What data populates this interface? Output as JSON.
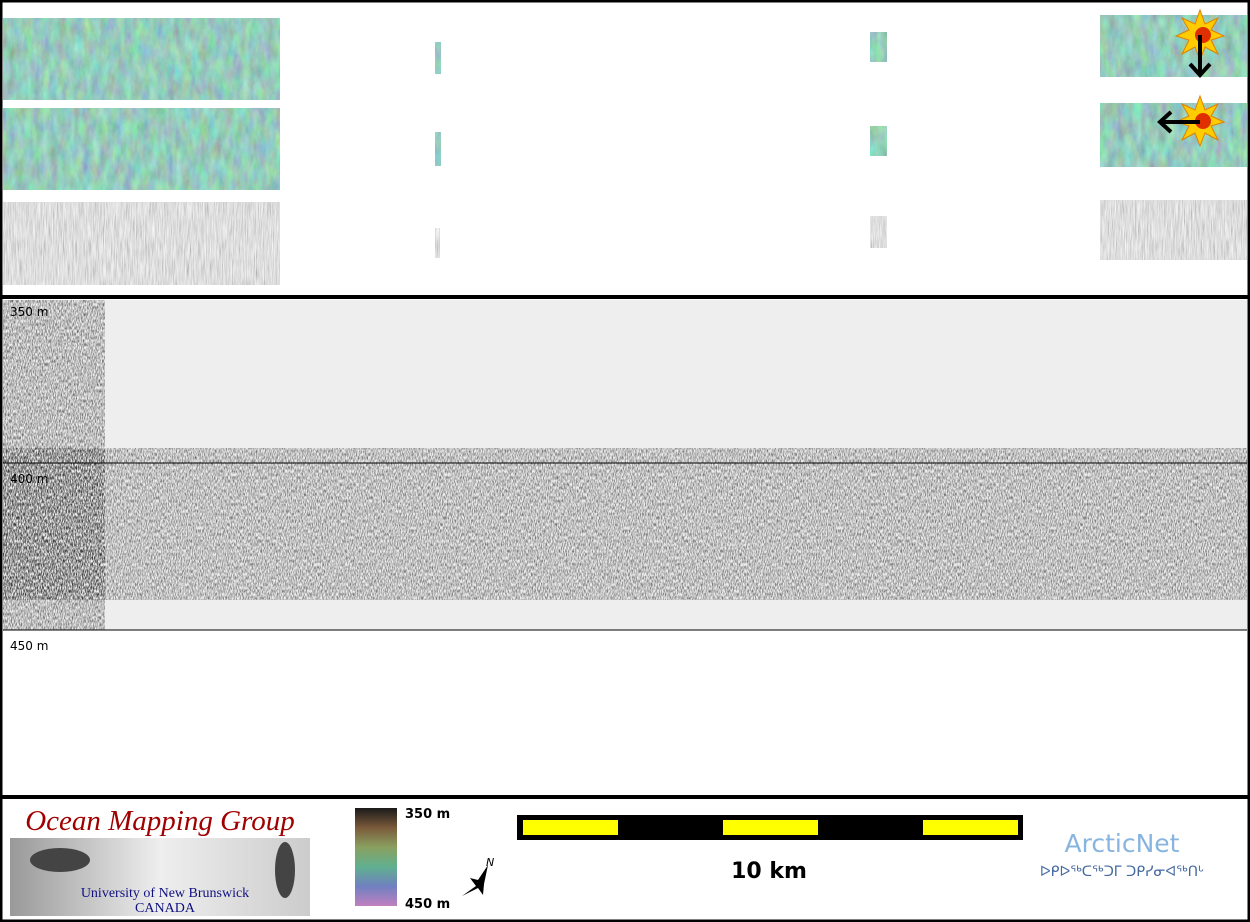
{
  "profile": {
    "depth_labels": [
      "350 m",
      "400 m",
      "450 m"
    ]
  },
  "footer": {
    "logo": {
      "title": "Ocean Mapping Group",
      "line1": "University of New Brunswick",
      "line2": "CANADA"
    },
    "colorbar": {
      "top_label": "350 m",
      "bottom_label": "450 m"
    },
    "north_arrow": "N",
    "scale_bar": "10 km",
    "partner": {
      "name": "ArcticNet",
      "syllabics": "ᐅᑭᐅᖅᑕᖅᑐᒥ ᑐᑭᓯᓂᐊᖅᑎᒡ"
    }
  }
}
